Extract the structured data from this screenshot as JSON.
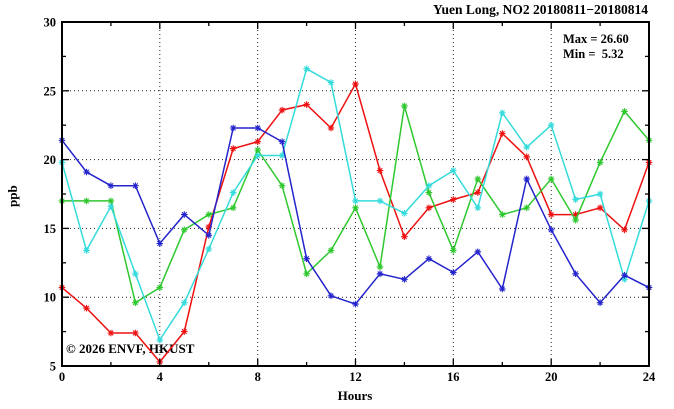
{
  "title": "Yuen Long, NO2 20180811−20180814",
  "stats": {
    "max_label": "Max = 26.60",
    "min_label": "Min =  5.32"
  },
  "watermark": "© 2026 ENVF, HKUST",
  "chart_data": {
    "type": "line",
    "title": "Yuen Long, NO2 20180811−20180814",
    "xlabel": "Hours",
    "ylabel": "ppb",
    "xlim": [
      0,
      24
    ],
    "ylim": [
      5,
      30
    ],
    "x_major_ticks": [
      0,
      4,
      8,
      12,
      16,
      20,
      24
    ],
    "x_minor_step": 2,
    "y_major_ticks": [
      5,
      10,
      15,
      20,
      25,
      30
    ],
    "y_minor_step": 2.5,
    "grid": true,
    "legend_position": "none",
    "max": 26.6,
    "min": 5.32,
    "x": [
      0,
      1,
      2,
      3,
      4,
      5,
      6,
      7,
      8,
      9,
      10,
      11,
      12,
      13,
      14,
      15,
      16,
      17,
      18,
      19,
      20,
      21,
      22,
      23,
      24
    ],
    "series": [
      {
        "name": "series-red",
        "color": "#ee1111",
        "values": [
          10.7,
          9.2,
          7.4,
          7.4,
          5.3,
          7.5,
          15.1,
          20.8,
          21.3,
          23.6,
          24.0,
          22.3,
          25.5,
          19.2,
          14.4,
          16.5,
          17.1,
          17.6,
          21.9,
          20.2,
          16.0,
          16.0,
          16.5,
          14.9,
          19.8
        ]
      },
      {
        "name": "series-green",
        "color": "#2fc82f",
        "values": [
          17.0,
          17.0,
          17.0,
          9.6,
          10.7,
          14.9,
          16.0,
          16.5,
          20.7,
          18.1,
          11.7,
          13.4,
          16.5,
          12.2,
          23.9,
          17.6,
          13.4,
          18.6,
          16.0,
          16.5,
          18.6,
          15.6,
          19.8,
          23.5,
          21.4
        ]
      },
      {
        "name": "series-cyan",
        "color": "#35dbdb",
        "values": [
          19.8,
          13.4,
          16.6,
          11.7,
          6.9,
          9.6,
          13.5,
          17.6,
          20.3,
          20.3,
          26.6,
          25.6,
          17.0,
          17.0,
          16.1,
          18.1,
          19.2,
          16.5,
          23.4,
          20.9,
          22.5,
          17.1,
          17.5,
          11.3,
          17.0
        ]
      },
      {
        "name": "series-blue",
        "color": "#2424cc",
        "values": [
          21.4,
          19.1,
          18.1,
          18.1,
          13.9,
          16.0,
          14.5,
          22.3,
          22.3,
          21.3,
          12.8,
          10.1,
          9.5,
          11.7,
          11.3,
          12.8,
          11.8,
          13.3,
          10.6,
          18.6,
          14.9,
          11.7,
          9.6,
          11.6,
          10.7
        ]
      }
    ]
  }
}
